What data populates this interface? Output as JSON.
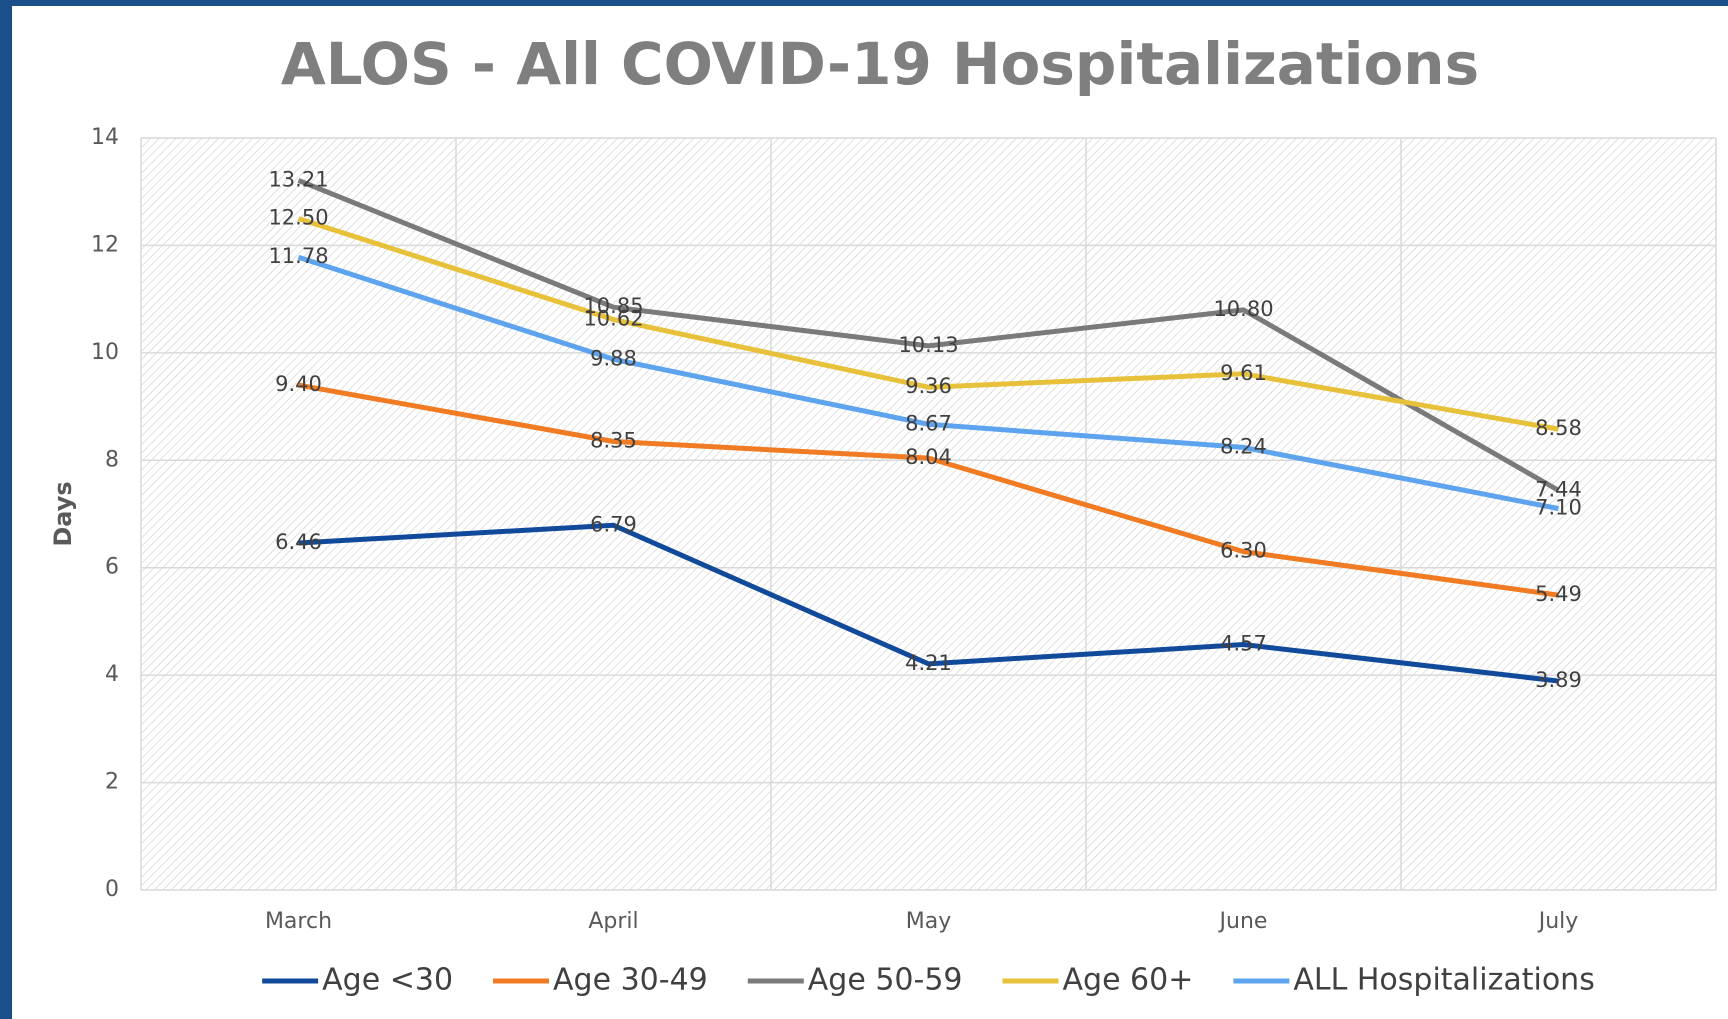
{
  "chart_data": {
    "type": "line",
    "title": "ALOS - All COVID-19 Hospitalizations",
    "ylabel": "Days",
    "categories": [
      "March",
      "April",
      "May",
      "June",
      "July"
    ],
    "series": [
      {
        "name": "Age <30",
        "color": "#114a9a",
        "values": [
          6.46,
          6.79,
          4.21,
          4.57,
          3.89
        ],
        "value_labels": [
          "6.46",
          "6.79",
          "4.21",
          "4.57",
          "3.89"
        ]
      },
      {
        "name": "Age 30-49",
        "color": "#f07b22",
        "values": [
          9.4,
          8.35,
          8.04,
          6.3,
          5.49
        ],
        "value_labels": [
          "9.40",
          "8.35",
          "8.04",
          "6.30",
          "5.49"
        ]
      },
      {
        "name": "Age 50-59",
        "color": "#7a7a7a",
        "values": [
          13.21,
          10.85,
          10.13,
          10.8,
          7.44
        ],
        "value_labels": [
          "13.21",
          "10.85",
          "10.13",
          "10.80",
          "7.44"
        ]
      },
      {
        "name": "Age 60+",
        "color": "#e8c13a",
        "values": [
          12.5,
          10.62,
          9.36,
          9.61,
          8.58
        ],
        "value_labels": [
          "12.50",
          "10.62",
          "9.36",
          "9.61",
          "8.58"
        ]
      },
      {
        "name": "ALL Hospitalizations",
        "color": "#5ea3ee",
        "values": [
          11.78,
          9.88,
          8.67,
          8.24,
          7.1
        ],
        "value_labels": [
          "11.78",
          "9.88",
          "8.67",
          "8.24",
          "7.10"
        ]
      }
    ],
    "ylim": [
      0,
      14
    ],
    "yticks": [
      0,
      2,
      4,
      6,
      8,
      10,
      12,
      14
    ],
    "grid": true,
    "legend": "bottom"
  }
}
